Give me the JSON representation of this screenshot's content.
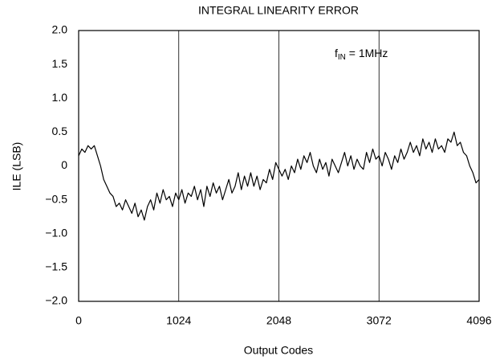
{
  "chart_data": {
    "type": "line",
    "title": "INTEGRAL LINEARITY ERROR",
    "xlabel": "Output Codes",
    "ylabel": "ILE (LSB)",
    "annotation": {
      "base": "f",
      "sub": "IN",
      "rest": " = 1MHz"
    },
    "color": "#000000",
    "grid": true,
    "xlim": [
      0,
      4096
    ],
    "xticks": [
      0,
      1024,
      2048,
      3072,
      4096
    ],
    "ylim": [
      -2,
      2
    ],
    "yticks": [
      {
        "value": -2,
        "label": "−2.0"
      },
      {
        "value": -1.5,
        "label": "−1.5"
      },
      {
        "value": -1,
        "label": "−1.0"
      },
      {
        "value": -0.5,
        "label": "−0.5"
      },
      0,
      {
        "value": 0.5,
        "label": "0.5"
      },
      {
        "value": 1,
        "label": "1.0"
      },
      {
        "value": 1.5,
        "label": "1.5"
      },
      {
        "value": 2,
        "label": "2.0"
      }
    ],
    "x": [
      0,
      32,
      64,
      96,
      128,
      160,
      192,
      224,
      256,
      288,
      320,
      352,
      384,
      416,
      448,
      480,
      512,
      544,
      576,
      608,
      640,
      672,
      704,
      736,
      768,
      800,
      832,
      864,
      896,
      928,
      960,
      992,
      1024,
      1056,
      1088,
      1120,
      1152,
      1184,
      1216,
      1248,
      1280,
      1312,
      1344,
      1376,
      1408,
      1440,
      1472,
      1504,
      1536,
      1568,
      1600,
      1632,
      1664,
      1696,
      1728,
      1760,
      1792,
      1824,
      1856,
      1888,
      1920,
      1952,
      1984,
      2016,
      2048,
      2080,
      2112,
      2144,
      2176,
      2208,
      2240,
      2272,
      2304,
      2336,
      2368,
      2400,
      2432,
      2464,
      2496,
      2528,
      2560,
      2592,
      2624,
      2656,
      2688,
      2720,
      2752,
      2784,
      2816,
      2848,
      2880,
      2912,
      2944,
      2976,
      3008,
      3040,
      3072,
      3104,
      3136,
      3168,
      3200,
      3232,
      3264,
      3296,
      3328,
      3360,
      3392,
      3424,
      3456,
      3488,
      3520,
      3552,
      3584,
      3616,
      3648,
      3680,
      3712,
      3744,
      3776,
      3808,
      3840,
      3872,
      3904,
      3936,
      3968,
      4000,
      4032,
      4064,
      4096
    ],
    "values": [
      0.15,
      0.25,
      0.2,
      0.3,
      0.25,
      0.3,
      0.15,
      0.0,
      -0.2,
      -0.3,
      -0.4,
      -0.45,
      -0.6,
      -0.55,
      -0.65,
      -0.5,
      -0.6,
      -0.7,
      -0.55,
      -0.75,
      -0.65,
      -0.8,
      -0.6,
      -0.5,
      -0.65,
      -0.4,
      -0.55,
      -0.35,
      -0.5,
      -0.45,
      -0.6,
      -0.4,
      -0.5,
      -0.35,
      -0.55,
      -0.4,
      -0.45,
      -0.3,
      -0.5,
      -0.35,
      -0.6,
      -0.3,
      -0.45,
      -0.25,
      -0.4,
      -0.3,
      -0.5,
      -0.35,
      -0.2,
      -0.4,
      -0.3,
      -0.1,
      -0.35,
      -0.15,
      -0.3,
      -0.1,
      -0.3,
      -0.15,
      -0.35,
      -0.2,
      -0.25,
      -0.05,
      -0.2,
      0.05,
      -0.05,
      -0.15,
      -0.05,
      -0.2,
      0.0,
      -0.1,
      0.1,
      -0.05,
      0.15,
      0.05,
      0.2,
      0.0,
      -0.1,
      0.1,
      -0.05,
      0.05,
      -0.15,
      0.1,
      0.0,
      -0.1,
      0.05,
      0.2,
      0.0,
      0.15,
      -0.05,
      0.1,
      0.0,
      -0.05,
      0.2,
      0.05,
      0.25,
      0.1,
      0.15,
      0.0,
      0.2,
      0.1,
      -0.05,
      0.15,
      0.05,
      0.25,
      0.1,
      0.2,
      0.35,
      0.2,
      0.3,
      0.15,
      0.4,
      0.25,
      0.35,
      0.2,
      0.4,
      0.25,
      0.3,
      0.2,
      0.4,
      0.35,
      0.5,
      0.3,
      0.35,
      0.2,
      0.15,
      0.0,
      -0.1,
      -0.25,
      -0.2
    ]
  }
}
